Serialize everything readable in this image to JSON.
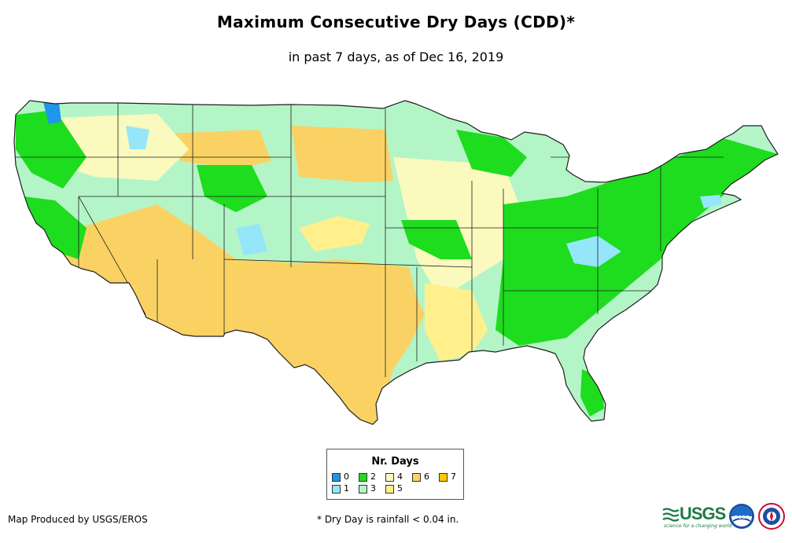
{
  "header": {
    "title": "Maximum Consecutive Dry Days (CDD)*",
    "subtitle": "in past 7 days, as of Dec 16, 2019"
  },
  "legend": {
    "title": "Nr. Days",
    "items": [
      {
        "label": "0",
        "color": "#1e96ea"
      },
      {
        "label": "1",
        "color": "#96e6fa"
      },
      {
        "label": "2",
        "color": "#1edc1e"
      },
      {
        "label": "3",
        "color": "#b4f5c8"
      },
      {
        "label": "4",
        "color": "#fafabe"
      },
      {
        "label": "5",
        "color": "#fff08c"
      },
      {
        "label": "6",
        "color": "#fad264"
      },
      {
        "label": "7",
        "color": "#ffc800"
      }
    ]
  },
  "map": {
    "background_color": "#ffffff",
    "border_color": "#1e1e1e"
  },
  "footer": {
    "credit": "Map Produced by USGS/EROS",
    "note": "* Dry Day is rainfall < 0.04 in."
  },
  "logos": {
    "usgs_text": "USGS",
    "usgs_tagline": "science for a changing world",
    "noaa_text": "noaa",
    "icons": [
      "usgs-logo",
      "noaa-logo",
      "nws-logo"
    ]
  }
}
